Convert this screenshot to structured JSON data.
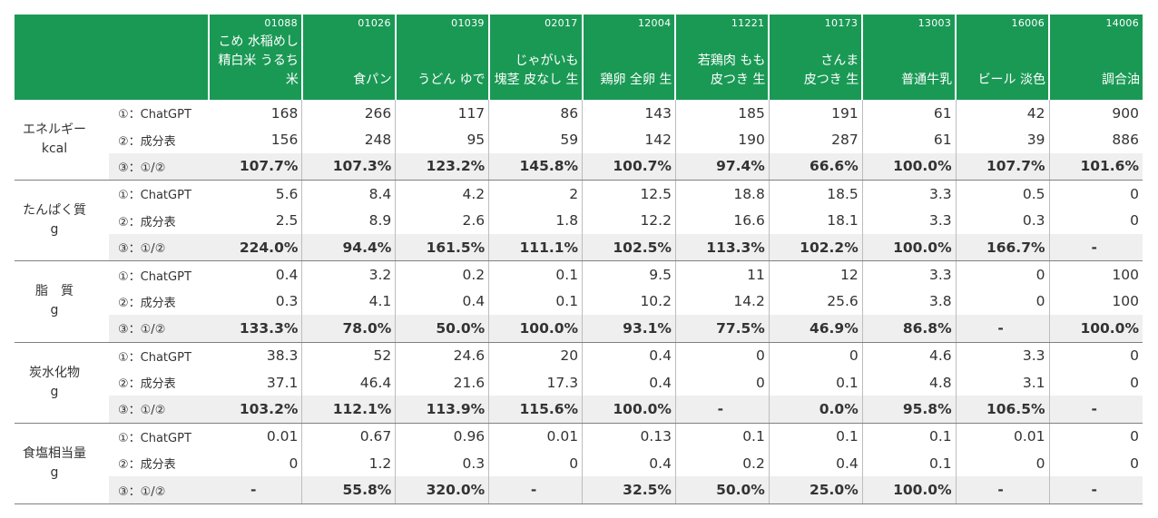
{
  "foods": [
    {
      "code": "01088",
      "name": "こめ 水稲めし\n精白米 うるち米"
    },
    {
      "code": "01026",
      "name": "食パン"
    },
    {
      "code": "01039",
      "name": "うどん ゆで"
    },
    {
      "code": "02017",
      "name": "じゃがいも\n塊茎 皮なし 生"
    },
    {
      "code": "12004",
      "name": "鶏卵 全卵 生"
    },
    {
      "code": "11221",
      "name": "若鶏肉 もも\n皮つき 生"
    },
    {
      "code": "10173",
      "name": "さんま\n皮つき 生"
    },
    {
      "code": "13003",
      "name": "普通牛乳"
    },
    {
      "code": "16006",
      "name": "ビール 淡色"
    },
    {
      "code": "14006",
      "name": "調合油"
    }
  ],
  "row_labels": {
    "chatgpt": "①：ChatGPT",
    "table": "②：成分表",
    "ratio": "③：①/②"
  },
  "nutrients": [
    {
      "name": "エネルギー\nkcal",
      "chatgpt": [
        "168",
        "266",
        "117",
        "86",
        "143",
        "185",
        "191",
        "61",
        "42",
        "900"
      ],
      "table": [
        "156",
        "248",
        "95",
        "59",
        "142",
        "190",
        "287",
        "61",
        "39",
        "886"
      ],
      "ratio": [
        "107.7%",
        "107.3%",
        "123.2%",
        "145.8%",
        "100.7%",
        "97.4%",
        "66.6%",
        "100.0%",
        "107.7%",
        "101.6%"
      ]
    },
    {
      "name": "たんぱく質\ng",
      "chatgpt": [
        "5.6",
        "8.4",
        "4.2",
        "2",
        "12.5",
        "18.8",
        "18.5",
        "3.3",
        "0.5",
        "0"
      ],
      "table": [
        "2.5",
        "8.9",
        "2.6",
        "1.8",
        "12.2",
        "16.6",
        "18.1",
        "3.3",
        "0.3",
        "0"
      ],
      "ratio": [
        "224.0%",
        "94.4%",
        "161.5%",
        "111.1%",
        "102.5%",
        "113.3%",
        "102.2%",
        "100.0%",
        "166.7%",
        "-"
      ]
    },
    {
      "name": "脂　質\ng",
      "chatgpt": [
        "0.4",
        "3.2",
        "0.2",
        "0.1",
        "9.5",
        "11",
        "12",
        "3.3",
        "0",
        "100"
      ],
      "table": [
        "0.3",
        "4.1",
        "0.4",
        "0.1",
        "10.2",
        "14.2",
        "25.6",
        "3.8",
        "0",
        "100"
      ],
      "ratio": [
        "133.3%",
        "78.0%",
        "50.0%",
        "100.0%",
        "93.1%",
        "77.5%",
        "46.9%",
        "86.8%",
        "-",
        "100.0%"
      ]
    },
    {
      "name": "炭水化物\ng",
      "chatgpt": [
        "38.3",
        "52",
        "24.6",
        "20",
        "0.4",
        "0",
        "0",
        "4.6",
        "3.3",
        "0"
      ],
      "table": [
        "37.1",
        "46.4",
        "21.6",
        "17.3",
        "0.4",
        "0",
        "0.1",
        "4.8",
        "3.1",
        "0"
      ],
      "ratio": [
        "103.2%",
        "112.1%",
        "113.9%",
        "115.6%",
        "100.0%",
        "-",
        "0.0%",
        "95.8%",
        "106.5%",
        "-"
      ]
    },
    {
      "name": "食塩相当量\ng",
      "chatgpt": [
        "0.01",
        "0.67",
        "0.96",
        "0.01",
        "0.13",
        "0.1",
        "0.1",
        "0.1",
        "0.01",
        "0"
      ],
      "table": [
        "0",
        "1.2",
        "0.3",
        "0",
        "0.4",
        "0.2",
        "0.4",
        "0.1",
        "0",
        "0"
      ],
      "ratio": [
        "-",
        "55.8%",
        "320.0%",
        "-",
        "32.5%",
        "50.0%",
        "25.0%",
        "100.0%",
        "-",
        "-"
      ]
    }
  ]
}
